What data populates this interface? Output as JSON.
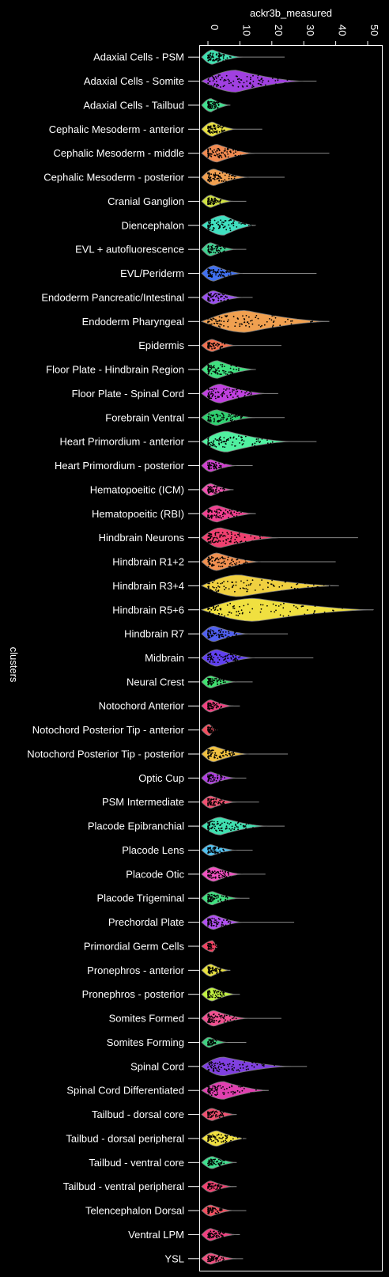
{
  "chart_data": {
    "type": "violin",
    "xlabel": "ackr3b_measured",
    "ylabel": "clusters",
    "xlim": [
      0,
      53
    ],
    "xticks": [
      0,
      10,
      20,
      30,
      40,
      50
    ],
    "xticks_position": "top",
    "grid": false,
    "categories": [
      {
        "name": "Adaxial Cells - PSM",
        "color": "#3ee0b0",
        "median": 1.5,
        "q3": 4,
        "max": 24,
        "width": 0.45
      },
      {
        "name": "Adaxial Cells - Somite",
        "color": "#a040e0",
        "median": 9,
        "q3": 14,
        "max": 34,
        "width": 0.8
      },
      {
        "name": "Adaxial Cells - Tailbud",
        "color": "#40e090",
        "median": 1,
        "q3": 2,
        "max": 7,
        "width": 0.4
      },
      {
        "name": "Cephalic Mesoderm - anterior",
        "color": "#e8e040",
        "median": 1.5,
        "q3": 3,
        "max": 17,
        "width": 0.45
      },
      {
        "name": "Cephalic Mesoderm - middle",
        "color": "#f08a50",
        "median": 3,
        "q3": 6,
        "max": 38,
        "width": 0.6
      },
      {
        "name": "Cephalic Mesoderm - posterior",
        "color": "#f0a050",
        "median": 2,
        "q3": 5,
        "max": 24,
        "width": 0.55
      },
      {
        "name": "Cranial Ganglion",
        "color": "#d0e040",
        "median": 1,
        "q3": 2.5,
        "max": 12,
        "width": 0.35
      },
      {
        "name": "Diencephalon",
        "color": "#40e0c0",
        "median": 5,
        "q3": 9,
        "max": 15,
        "width": 0.7
      },
      {
        "name": "EVL + autofluorescence",
        "color": "#40d090",
        "median": 1,
        "q3": 3,
        "max": 12,
        "width": 0.4
      },
      {
        "name": "EVL/Periderm",
        "color": "#4070f0",
        "median": 2,
        "q3": 4,
        "max": 34,
        "width": 0.5
      },
      {
        "name": "Endoderm Pancreatic/Intestinal",
        "color": "#9a50f0",
        "median": 2,
        "q3": 4,
        "max": 14,
        "width": 0.4
      },
      {
        "name": "Endoderm Pharyngeal",
        "color": "#f0a050",
        "median": 12,
        "q3": 20,
        "max": 38,
        "width": 0.8
      },
      {
        "name": "Epidermis",
        "color": "#f07050",
        "median": 1.5,
        "q3": 3,
        "max": 23,
        "width": 0.35
      },
      {
        "name": "Floor Plate - Hindbrain Region",
        "color": "#40e080",
        "median": 3,
        "q3": 7,
        "max": 15,
        "width": 0.6
      },
      {
        "name": "Floor Plate - Spinal Cord",
        "color": "#c040e0",
        "median": 4,
        "q3": 8,
        "max": 22,
        "width": 0.65
      },
      {
        "name": "Forebrain Ventral",
        "color": "#30d070",
        "median": 3,
        "q3": 6,
        "max": 24,
        "width": 0.5
      },
      {
        "name": "Heart Primordium - anterior",
        "color": "#50f0a0",
        "median": 6,
        "q3": 12,
        "max": 34,
        "width": 0.75
      },
      {
        "name": "Heart Primordium - posterior",
        "color": "#d040d0",
        "median": 1,
        "q3": 3,
        "max": 14,
        "width": 0.35
      },
      {
        "name": "Hematopoeitic (ICM)",
        "color": "#f050b0",
        "median": 1,
        "q3": 3,
        "max": 8,
        "width": 0.35
      },
      {
        "name": "Hematopoeitic (RBI)",
        "color": "#f04090",
        "median": 3,
        "q3": 6,
        "max": 15,
        "width": 0.55
      },
      {
        "name": "Hindbrain Neurons",
        "color": "#f04070",
        "median": 4,
        "q3": 10,
        "max": 47,
        "width": 0.7
      },
      {
        "name": "Hindbrain R1+2",
        "color": "#f09050",
        "median": 3,
        "q3": 7,
        "max": 40,
        "width": 0.6
      },
      {
        "name": "Hindbrain R3+4",
        "color": "#f0d040",
        "median": 10,
        "q3": 22,
        "max": 41,
        "width": 0.8
      },
      {
        "name": "Hindbrain R5+6",
        "color": "#f0e040",
        "median": 15,
        "q3": 32,
        "max": 52,
        "width": 0.85
      },
      {
        "name": "Hindbrain R7",
        "color": "#5060f0",
        "median": 2,
        "q3": 5,
        "max": 25,
        "width": 0.5
      },
      {
        "name": "Midbrain",
        "color": "#6040f0",
        "median": 3,
        "q3": 6,
        "max": 33,
        "width": 0.55
      },
      {
        "name": "Neural Crest",
        "color": "#40e070",
        "median": 1,
        "q3": 3,
        "max": 14,
        "width": 0.35
      },
      {
        "name": "Notochord Anterior",
        "color": "#f04080",
        "median": 1,
        "q3": 2.5,
        "max": 10,
        "width": 0.35
      },
      {
        "name": "Notochord Posterior Tip - anterior",
        "color": "#f05060",
        "median": 0.5,
        "q3": 1.5,
        "max": 3,
        "width": 0.3
      },
      {
        "name": "Notochord Posterior Tip - posterior",
        "color": "#f0c040",
        "median": 2,
        "q3": 5,
        "max": 25,
        "width": 0.5
      },
      {
        "name": "Optic Cup",
        "color": "#b040e0",
        "median": 1,
        "q3": 3,
        "max": 12,
        "width": 0.35
      },
      {
        "name": "PSM Intermediate",
        "color": "#f05070",
        "median": 1,
        "q3": 3,
        "max": 16,
        "width": 0.35
      },
      {
        "name": "Placode Epibranchial",
        "color": "#40e0b0",
        "median": 4,
        "q3": 8,
        "max": 24,
        "width": 0.6
      },
      {
        "name": "Placode Lens",
        "color": "#50c0f0",
        "median": 1,
        "q3": 3,
        "max": 14,
        "width": 0.3
      },
      {
        "name": "Placode Otic",
        "color": "#f050c0",
        "median": 2,
        "q3": 4,
        "max": 18,
        "width": 0.45
      },
      {
        "name": "Placode Trigeminal",
        "color": "#40e080",
        "median": 1.5,
        "q3": 3.5,
        "max": 13,
        "width": 0.4
      },
      {
        "name": "Prechordal Plate",
        "color": "#b050f0",
        "median": 2,
        "q3": 4,
        "max": 27,
        "width": 0.45
      },
      {
        "name": "Primordial Germ Cells",
        "color": "#f04060",
        "median": 1.5,
        "q3": 2.5,
        "max": 3.5,
        "width": 0.3
      },
      {
        "name": "Pronephros - anterior",
        "color": "#e8e040",
        "median": 1,
        "q3": 2.5,
        "max": 7,
        "width": 0.35
      },
      {
        "name": "Pronephros - posterior",
        "color": "#c0f040",
        "median": 1.5,
        "q3": 3,
        "max": 10,
        "width": 0.4
      },
      {
        "name": "Somites Formed",
        "color": "#f05090",
        "median": 2,
        "q3": 5,
        "max": 23,
        "width": 0.5
      },
      {
        "name": "Somites Forming",
        "color": "#40d080",
        "median": 0.5,
        "q3": 1.5,
        "max": 12,
        "width": 0.25
      },
      {
        "name": "Spinal Cord",
        "color": "#8040e0",
        "median": 5,
        "q3": 12,
        "max": 31,
        "width": 0.65
      },
      {
        "name": "Spinal Cord Differentiated",
        "color": "#e040b0",
        "median": 5,
        "q3": 10,
        "max": 19,
        "width": 0.6
      },
      {
        "name": "Tailbud - dorsal core",
        "color": "#f05070",
        "median": 1.5,
        "q3": 3,
        "max": 9,
        "width": 0.35
      },
      {
        "name": "Tailbud - dorsal peripheral",
        "color": "#f0e040",
        "median": 3,
        "q3": 6,
        "max": 12,
        "width": 0.5
      },
      {
        "name": "Tailbud - ventral core",
        "color": "#40e090",
        "median": 1.5,
        "q3": 3,
        "max": 9,
        "width": 0.35
      },
      {
        "name": "Tailbud - ventral peripheral",
        "color": "#f04070",
        "median": 1,
        "q3": 2.5,
        "max": 9,
        "width": 0.3
      },
      {
        "name": "Telencephalon Dorsal",
        "color": "#f05060",
        "median": 1,
        "q3": 2.5,
        "max": 12,
        "width": 0.3
      },
      {
        "name": "Ventral LPM",
        "color": "#f04080",
        "median": 1,
        "q3": 3,
        "max": 10,
        "width": 0.35
      },
      {
        "name": "YSL",
        "color": "#f05080",
        "median": 1,
        "q3": 3,
        "max": 11,
        "width": 0.3
      }
    ]
  }
}
